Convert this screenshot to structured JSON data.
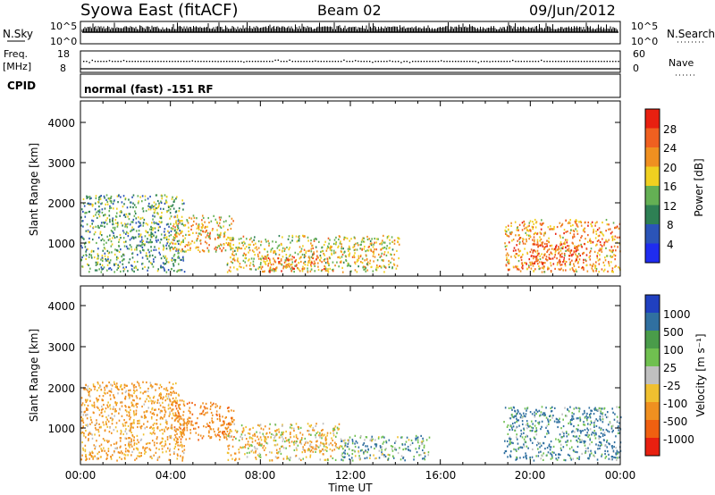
{
  "header": {
    "station": "Syowa East (fitACF)",
    "beam": "Beam 02",
    "date": "09/Jun/2012"
  },
  "panels": {
    "nsky": {
      "left_label": "N.Sky",
      "right_label": "N.Search",
      "left_ticks": [
        "10^5",
        "10^0"
      ],
      "right_ticks": [
        "10^5",
        "10^0"
      ]
    },
    "freq": {
      "left_label_1": "Freq.",
      "left_label_2": "[MHz]",
      "left_ticks": [
        "18",
        "8"
      ],
      "right_label": "Nave",
      "right_ticks": [
        "60",
        "0"
      ]
    },
    "cpid": {
      "label": "CPID",
      "text": "normal (fast) -151 RF"
    }
  },
  "axes": {
    "ylabel": "Slant Range [km]",
    "xlabel": "Time UT",
    "y_ticks": [
      "1000",
      "2000",
      "3000",
      "4000"
    ],
    "x_ticks": [
      "00:00",
      "04:00",
      "08:00",
      "12:00",
      "16:00",
      "20:00",
      "00:00"
    ]
  },
  "colorbars": {
    "power": {
      "label": "Power [dB]",
      "ticks": [
        "4",
        "8",
        "12",
        "16",
        "20",
        "24",
        "28"
      ],
      "colors": [
        "#1f2cf0",
        "#2b54b8",
        "#2e8054",
        "#64b054",
        "#f0d020",
        "#f09020",
        "#f06020",
        "#e82010"
      ]
    },
    "velocity": {
      "label": "Velocity [m s⁻¹]",
      "ticks": [
        "1000",
        "500",
        "100",
        "25",
        "-25",
        "-100",
        "-500",
        "-1000"
      ],
      "colors": [
        "#2040c0",
        "#3070a0",
        "#4a9c4a",
        "#70c050",
        "#c0c0c0",
        "#f0c030",
        "#f09020",
        "#f06010",
        "#e82010"
      ]
    }
  },
  "chart_data": [
    {
      "type": "heatmap",
      "title": "Power",
      "x_range": [
        "00:00",
        "24:00"
      ],
      "y_range_km": [
        180,
        4500
      ],
      "colorbar_range_db": [
        0,
        32
      ],
      "regions": [
        {
          "t_start": 0.0,
          "t_end": 4.6,
          "r_min": 300,
          "r_max": 2200,
          "level_db": 12
        },
        {
          "t_start": 4.0,
          "t_end": 6.8,
          "r_min": 800,
          "r_max": 1700,
          "level_db": 20
        },
        {
          "t_start": 6.5,
          "t_end": 14.2,
          "r_min": 300,
          "r_max": 1200,
          "level_db": 18
        },
        {
          "t_start": 8.0,
          "t_end": 11.0,
          "r_min": 300,
          "r_max": 700,
          "level_db": 24
        },
        {
          "t_start": 18.8,
          "t_end": 24.0,
          "r_min": 300,
          "r_max": 1600,
          "level_db": 22
        },
        {
          "t_start": 20.0,
          "t_end": 22.5,
          "r_min": 500,
          "r_max": 1000,
          "level_db": 28
        }
      ]
    },
    {
      "type": "heatmap",
      "title": "Velocity",
      "x_range": [
        "00:00",
        "24:00"
      ],
      "y_range_km": [
        180,
        4500
      ],
      "colorbar_range_ms": [
        -1000,
        1000
      ],
      "regions": [
        {
          "t_start": 0.0,
          "t_end": 4.6,
          "r_min": 300,
          "r_max": 2200,
          "velocity_ms": -150
        },
        {
          "t_start": 4.0,
          "t_end": 6.8,
          "r_min": 800,
          "r_max": 1700,
          "velocity_ms": -400
        },
        {
          "t_start": 6.5,
          "t_end": 11.5,
          "r_min": 300,
          "r_max": 1200,
          "velocity_ms": -60
        },
        {
          "t_start": 11.5,
          "t_end": 15.5,
          "r_min": 300,
          "r_max": 900,
          "velocity_ms": 90
        },
        {
          "t_start": 18.8,
          "t_end": 24.0,
          "r_min": 300,
          "r_max": 1600,
          "velocity_ms": 150
        }
      ]
    }
  ]
}
